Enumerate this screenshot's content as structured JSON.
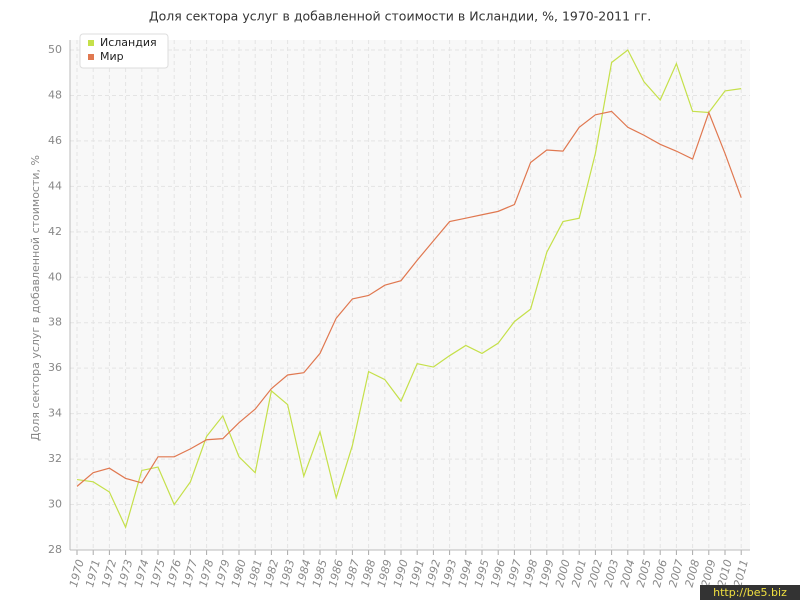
{
  "chart_data": {
    "type": "line",
    "title": "Доля сектора услуг в добавленной стоимости в Исландии, %, 1970-2011 гг.",
    "y_label": "Доля сектора услуг в добавленной стоимости, %",
    "categories": [
      "1970",
      "1971",
      "1972",
      "1973",
      "1974",
      "1975",
      "1976",
      "1977",
      "1978",
      "1979",
      "1980",
      "1981",
      "1982",
      "1983",
      "1984",
      "1985",
      "1986",
      "1987",
      "1988",
      "1989",
      "1990",
      "1991",
      "1992",
      "1993",
      "1994",
      "1995",
      "1996",
      "1997",
      "1998",
      "1999",
      "2000",
      "2001",
      "2002",
      "2003",
      "2004",
      "2005",
      "2006",
      "2007",
      "2008",
      "2009",
      "2010",
      "2011"
    ],
    "series": [
      {
        "name": "Исландия",
        "color": "#c5e04a",
        "values": [
          31.1,
          31.0,
          30.55,
          29.0,
          31.5,
          31.65,
          30.0,
          31.0,
          33.0,
          33.9,
          32.1,
          31.4,
          35.0,
          34.4,
          31.25,
          33.2,
          30.3,
          32.6,
          35.85,
          35.5,
          34.55,
          36.2,
          36.05,
          36.55,
          37.0,
          36.65,
          37.1,
          38.05,
          38.6,
          41.1,
          42.45,
          42.6,
          45.45,
          49.45,
          50.0,
          48.6,
          47.8,
          49.4,
          47.3,
          47.25,
          48.2,
          48.3
        ]
      },
      {
        "name": "Мир",
        "color": "#e07850",
        "values": [
          30.8,
          31.4,
          31.6,
          31.15,
          30.95,
          32.1,
          32.1,
          32.45,
          32.85,
          32.9,
          33.6,
          34.2,
          35.1,
          35.7,
          35.8,
          36.65,
          38.2,
          39.05,
          39.2,
          39.65,
          39.85,
          40.75,
          41.6,
          42.45,
          42.6,
          42.75,
          42.9,
          43.2,
          45.05,
          45.6,
          45.55,
          46.6,
          47.15,
          47.3,
          46.6,
          46.25,
          45.85,
          45.55,
          45.2,
          47.25,
          45.45,
          43.5
        ]
      }
    ],
    "ylim": [
      28,
      50
    ],
    "yticks": [
      28,
      30,
      32,
      34,
      36,
      38,
      40,
      42,
      44,
      46,
      48,
      50
    ],
    "grid": true,
    "legend": "top-left",
    "watermark": "http://be5.biz"
  }
}
